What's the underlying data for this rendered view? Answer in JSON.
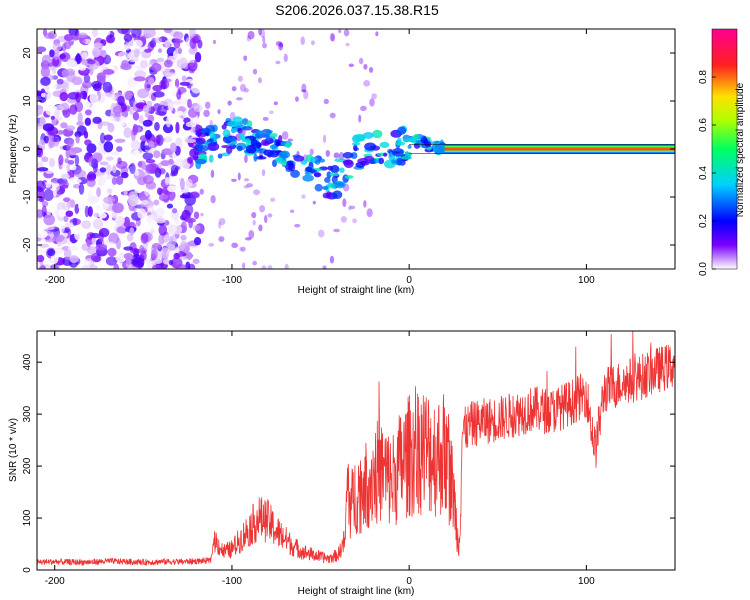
{
  "figure": {
    "title": "S206.2026.037.15.38.R15"
  },
  "chart_data": [
    {
      "type": "heatmap",
      "title": "S206.2026.037.15.38.R15",
      "xlabel": "Height of straight line (km)",
      "ylabel": "Frequency (Hz)",
      "xlim": [
        -210,
        150
      ],
      "ylim": [
        -25,
        25
      ],
      "x_ticks": [
        -200,
        -100,
        0,
        100
      ],
      "y_ticks": [
        -20,
        -10,
        0,
        10,
        20
      ],
      "colorbar": {
        "label": "Normalized spectral amplitude",
        "range": [
          0,
          1
        ],
        "ticks": [
          "0.0",
          "0.2",
          "0.4",
          "0.6",
          "0.8"
        ],
        "colormap": [
          "#ffffff",
          "#7a00ff",
          "#0000ff",
          "#00d0ff",
          "#00ff60",
          "#b0ff00",
          "#ffe000",
          "#ff2020",
          "#ff0090"
        ]
      },
      "description_track": {
        "x": [
          -120,
          -110,
          -100,
          -90,
          -80,
          -70,
          -60,
          -50,
          -45,
          -40,
          -35,
          -30,
          -20,
          -10,
          0,
          5,
          10,
          20,
          50,
          100,
          150
        ],
        "freq": [
          0,
          1,
          3,
          2,
          1,
          -1,
          -3,
          -5,
          -7,
          -6,
          -3,
          -1,
          0,
          0,
          1,
          2,
          1,
          0,
          0,
          0,
          0.5
        ]
      }
    },
    {
      "type": "line",
      "xlabel": "Height of straight line (km)",
      "ylabel": "SNR (10 * v/v)",
      "xlim": [
        -210,
        150
      ],
      "ylim": [
        0,
        460
      ],
      "x_ticks": [
        -200,
        -100,
        0,
        100
      ],
      "y_ticks": [
        0,
        100,
        200,
        300,
        400
      ],
      "color": "#ee3333",
      "series": [
        {
          "x": [
            -210,
            -200,
            -190,
            -180,
            -170,
            -160,
            -150,
            -140,
            -130,
            -120,
            -112,
            -110,
            -105,
            -100,
            -95,
            -90,
            -85,
            -80,
            -75,
            -70,
            -65,
            -60,
            -55,
            -50,
            -45,
            -40,
            -36,
            -35,
            -33,
            -30,
            -25,
            -20,
            -15,
            -10,
            -5,
            0,
            5,
            10,
            15,
            20,
            25,
            28,
            30,
            35,
            40,
            50,
            60,
            70,
            80,
            90,
            100,
            105,
            110,
            120,
            130,
            140,
            150
          ],
          "y": [
            15,
            16,
            15,
            15,
            17,
            16,
            15,
            16,
            16,
            17,
            18,
            60,
            35,
            40,
            60,
            80,
            100,
            95,
            75,
            60,
            45,
            35,
            30,
            25,
            22,
            30,
            60,
            170,
            120,
            150,
            160,
            185,
            190,
            170,
            200,
            220,
            235,
            230,
            220,
            225,
            150,
            40,
            265,
            280,
            285,
            290,
            300,
            310,
            305,
            320,
            340,
            230,
            345,
            360,
            370,
            385,
            395
          ]
        }
      ]
    }
  ]
}
